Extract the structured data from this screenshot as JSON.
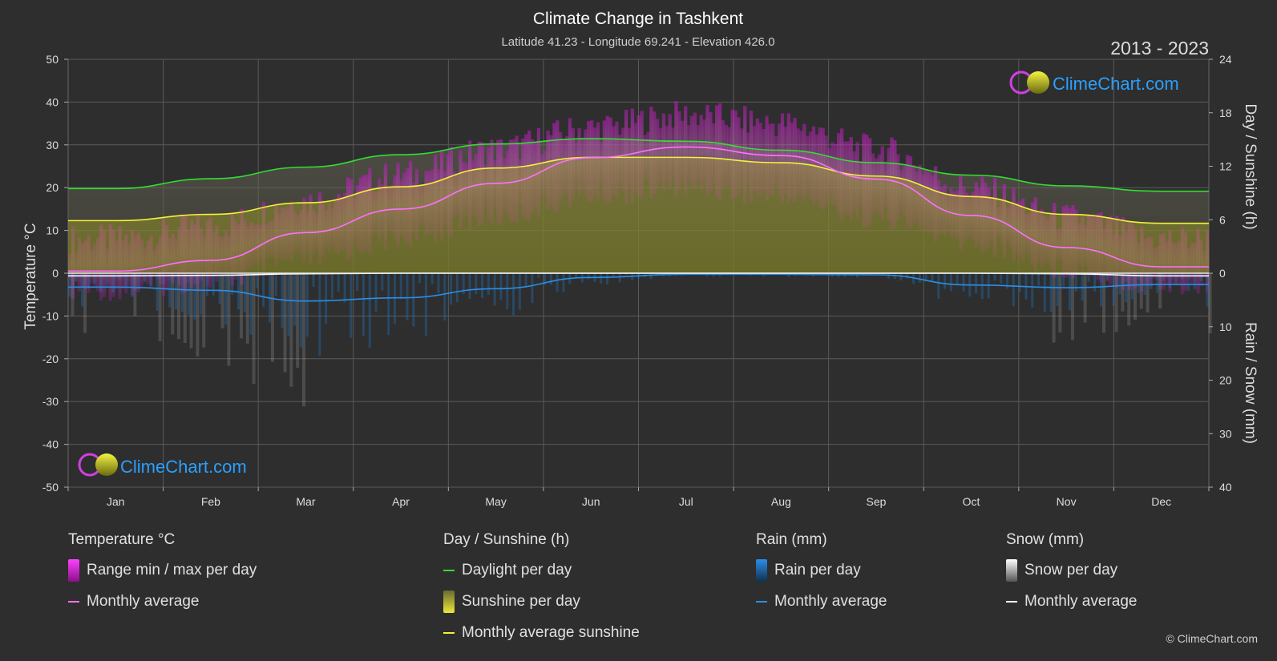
{
  "title": "Climate Change in Tashkent",
  "subtitle": "Latitude 41.23 - Longitude 69.241 - Elevation 426.0",
  "year_range": "2013 - 2023",
  "brand": "ClimeChart.com",
  "copyright": "© ClimeChart.com",
  "colors": {
    "background": "#2e2e2e",
    "grid": "#5a5a5a",
    "temp_range": "#e020e0",
    "temp_avg": "#ff70ff",
    "daylight": "#33dd33",
    "sunshine_fill": "#b5b52a",
    "sunshine_avg": "#f2f23a",
    "rain": "#1e78c8",
    "rain_avg": "#2a8ee8",
    "snow": "#bbbbbb",
    "snow_avg": "#ffffff",
    "brand_text": "#2aa0ff"
  },
  "chart_data": {
    "type": "area",
    "categories": [
      "Jan",
      "Feb",
      "Mar",
      "Apr",
      "May",
      "Jun",
      "Jul",
      "Aug",
      "Sep",
      "Oct",
      "Nov",
      "Dec"
    ],
    "y_left": {
      "label": "Temperature °C",
      "ylim": [
        -50,
        50
      ],
      "ticks": [
        50,
        40,
        30,
        20,
        10,
        0,
        -10,
        -20,
        -30,
        -40,
        -50
      ]
    },
    "y_right_top": {
      "label": "Day / Sunshine (h)",
      "ylim": [
        0,
        24
      ],
      "ticks": [
        24,
        18,
        12,
        6,
        0
      ]
    },
    "y_right_bottom": {
      "label": "Rain / Snow (mm)",
      "ylim": [
        0,
        40
      ],
      "ticks": [
        10,
        20,
        30,
        40
      ]
    },
    "grid": true,
    "series": [
      {
        "name": "Daylight per day",
        "unit": "h",
        "values": [
          9.5,
          10.6,
          11.9,
          13.3,
          14.5,
          15.1,
          14.8,
          13.8,
          12.4,
          11.0,
          9.8,
          9.2
        ]
      },
      {
        "name": "Monthly average sunshine",
        "unit": "h",
        "values": [
          5.9,
          6.6,
          7.9,
          9.7,
          11.8,
          13.0,
          13.0,
          12.4,
          10.9,
          8.6,
          6.6,
          5.6
        ]
      },
      {
        "name": "Temperature monthly average",
        "unit": "°C",
        "values": [
          0.5,
          3.0,
          9.5,
          15.0,
          21.0,
          27.0,
          29.5,
          27.5,
          22.0,
          13.5,
          6.0,
          1.5
        ]
      },
      {
        "name": "Temperature daily max (approx)",
        "unit": "°C",
        "values": [
          8,
          11,
          17,
          23,
          29,
          34,
          37,
          35,
          29,
          20,
          13,
          8
        ]
      },
      {
        "name": "Temperature daily min (approx)",
        "unit": "°C",
        "values": [
          -4,
          -2,
          3,
          8,
          13,
          18,
          20,
          18,
          13,
          7,
          1,
          -3
        ]
      },
      {
        "name": "Rain monthly average",
        "unit": "mm",
        "values": [
          2.6,
          3.2,
          5.2,
          4.6,
          2.9,
          0.8,
          0.2,
          0.2,
          0.3,
          2.2,
          2.7,
          2.1
        ]
      },
      {
        "name": "Snow monthly average",
        "unit": "mm",
        "values": [
          0.5,
          0.4,
          0.1,
          0,
          0,
          0,
          0,
          0,
          0,
          0,
          0.1,
          0.5
        ]
      }
    ]
  },
  "legend": [
    {
      "head": "Temperature °C",
      "items": [
        {
          "label": "Range min / max per day",
          "swatch": "box",
          "color_key": "temp_range"
        },
        {
          "label": "Monthly average",
          "swatch": "line",
          "color_key": "temp_avg"
        }
      ]
    },
    {
      "head": "Day / Sunshine (h)",
      "items": [
        {
          "label": "Daylight per day",
          "swatch": "line",
          "color_key": "daylight"
        },
        {
          "label": "Sunshine per day",
          "swatch": "box",
          "color_key": "sunshine_fill"
        },
        {
          "label": "Monthly average sunshine",
          "swatch": "line",
          "color_key": "sunshine_avg"
        }
      ]
    },
    {
      "head": "Rain (mm)",
      "items": [
        {
          "label": "Rain per day",
          "swatch": "box",
          "color_key": "rain"
        },
        {
          "label": "Monthly average",
          "swatch": "line",
          "color_key": "rain_avg"
        }
      ]
    },
    {
      "head": "Snow (mm)",
      "items": [
        {
          "label": "Snow per day",
          "swatch": "box",
          "color_key": "snow"
        },
        {
          "label": "Monthly average",
          "swatch": "line",
          "color_key": "snow_avg"
        }
      ]
    }
  ]
}
